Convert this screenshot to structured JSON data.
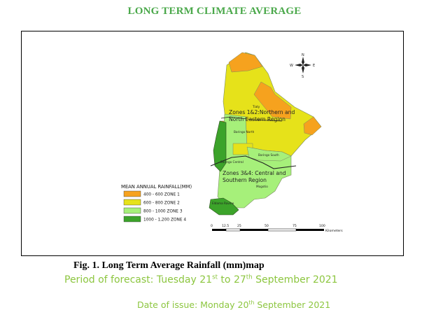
{
  "title": "LONG TERM CLIMATE AVERAGE",
  "map": {
    "compass": {
      "n": "N",
      "s": "S",
      "e": "E",
      "w": "W"
    },
    "region_labels": {
      "zones12_line1": "Zones 1&2:Northern and",
      "zones12_line2": "North Eastern Region",
      "zones34_line1": "Zones 3&4: Central and",
      "zones34_line2": "Southern Region"
    },
    "place_labels": {
      "tiaty": "Tiaty",
      "baringo_north": "Baringo North",
      "baringo_south": "Baringo South",
      "baringo_central": "Baringo Central",
      "mogotio": "Mogotio",
      "eldama_ravine": "Eldama Ravine"
    },
    "legend": {
      "title": "MEAN ANNUAL RAINFALL(MM)",
      "items": [
        {
          "label": "400 - 600 ZONE 1",
          "color": "#f6a21e"
        },
        {
          "label": "600 - 800 ZONE 2",
          "color": "#e6e21a"
        },
        {
          "label": "800 - 1000 ZONE 3",
          "color": "#a6f07a"
        },
        {
          "label": "1000 - 1,200 ZONE 4",
          "color": "#3ca32a"
        }
      ]
    },
    "scale": {
      "ticks": [
        "0",
        "12.5",
        "25",
        "50",
        "75",
        "100"
      ],
      "unit": "Kilometers"
    }
  },
  "caption": "Fig. 1. Long Term Average Rainfall (mm)map",
  "period": {
    "prefix": "Period of forecast:  Tuesday 21",
    "sup1": "st",
    "mid": " to 27",
    "sup2": "th",
    "suffix": " September 2021"
  },
  "issue": {
    "prefix": "Date of issue: Monday 20",
    "sup": "th",
    "suffix": " September 2021"
  }
}
